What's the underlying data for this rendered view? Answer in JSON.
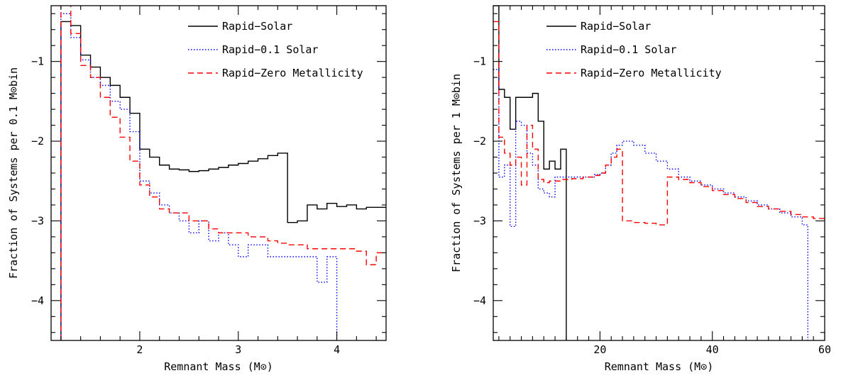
{
  "chart_data": [
    {
      "type": "line",
      "xlabel": "Remnant Mass (M⊙)",
      "ylabel": "Fraction of Systems per 0.1 M⊙bin",
      "xlim": [
        1.1,
        4.5
      ],
      "ylim": [
        -4.5,
        -0.3
      ],
      "x_major_ticks": [
        2,
        3,
        4
      ],
      "x_minor_step": 0.2,
      "y_major_ticks": [
        -4,
        -3,
        -2,
        -1
      ],
      "y_minor_step": 0.2,
      "grid": false,
      "legend_position": "top-right",
      "series": [
        {
          "name": "Rapid−Solar",
          "color": "#000000",
          "dash": "solid",
          "steps": [
            [
              1.2,
              -4.5
            ],
            [
              1.2,
              -0.5
            ],
            [
              1.3,
              -0.55
            ],
            [
              1.4,
              -0.92
            ],
            [
              1.5,
              -1.07
            ],
            [
              1.6,
              -1.2
            ],
            [
              1.7,
              -1.3
            ],
            [
              1.8,
              -1.45
            ],
            [
              1.9,
              -1.65
            ],
            [
              2.0,
              -2.1
            ],
            [
              2.1,
              -2.2
            ],
            [
              2.2,
              -2.3
            ],
            [
              2.3,
              -2.35
            ],
            [
              2.4,
              -2.36
            ],
            [
              2.5,
              -2.38
            ],
            [
              2.6,
              -2.37
            ],
            [
              2.7,
              -2.35
            ],
            [
              2.8,
              -2.33
            ],
            [
              2.9,
              -2.3
            ],
            [
              3.0,
              -2.28
            ],
            [
              3.1,
              -2.25
            ],
            [
              3.2,
              -2.22
            ],
            [
              3.3,
              -2.18
            ],
            [
              3.4,
              -2.15
            ],
            [
              3.5,
              -3.02
            ],
            [
              3.6,
              -3.0
            ],
            [
              3.7,
              -2.8
            ],
            [
              3.8,
              -2.85
            ],
            [
              3.9,
              -2.78
            ],
            [
              4.0,
              -2.82
            ],
            [
              4.1,
              -2.8
            ],
            [
              4.2,
              -2.85
            ],
            [
              4.3,
              -2.83
            ],
            [
              4.5,
              -2.83
            ]
          ]
        },
        {
          "name": "Rapid−0.1 Solar",
          "color": "#0000ff",
          "dash": "dotted",
          "steps": [
            [
              1.2,
              -4.5
            ],
            [
              1.2,
              -0.4
            ],
            [
              1.3,
              -0.7
            ],
            [
              1.4,
              -0.98
            ],
            [
              1.5,
              -1.2
            ],
            [
              1.6,
              -1.3
            ],
            [
              1.7,
              -1.5
            ],
            [
              1.8,
              -1.6
            ],
            [
              1.9,
              -1.88
            ],
            [
              2.0,
              -2.5
            ],
            [
              2.1,
              -2.65
            ],
            [
              2.2,
              -2.8
            ],
            [
              2.3,
              -2.9
            ],
            [
              2.4,
              -3.0
            ],
            [
              2.5,
              -3.15
            ],
            [
              2.6,
              -3.0
            ],
            [
              2.7,
              -3.25
            ],
            [
              2.8,
              -3.15
            ],
            [
              2.9,
              -3.3
            ],
            [
              3.0,
              -3.45
            ],
            [
              3.1,
              -3.3
            ],
            [
              3.2,
              -3.3
            ],
            [
              3.3,
              -3.45
            ],
            [
              3.4,
              -3.45
            ],
            [
              3.5,
              -3.45
            ],
            [
              3.6,
              -3.45
            ],
            [
              3.7,
              -3.45
            ],
            [
              3.8,
              -3.77
            ],
            [
              3.9,
              -3.45
            ],
            [
              4.0,
              -4.5
            ]
          ]
        },
        {
          "name": "Rapid−Zero Metallicity",
          "color": "#ff0000",
          "dash": "dashed",
          "steps": [
            [
              1.2,
              -4.5
            ],
            [
              1.2,
              -0.18
            ],
            [
              1.3,
              -0.65
            ],
            [
              1.4,
              -1.05
            ],
            [
              1.5,
              -1.2
            ],
            [
              1.6,
              -1.45
            ],
            [
              1.7,
              -1.7
            ],
            [
              1.8,
              -1.95
            ],
            [
              1.9,
              -2.25
            ],
            [
              2.0,
              -2.55
            ],
            [
              2.1,
              -2.7
            ],
            [
              2.2,
              -2.85
            ],
            [
              2.3,
              -2.9
            ],
            [
              2.4,
              -2.9
            ],
            [
              2.5,
              -3.0
            ],
            [
              2.6,
              -3.0
            ],
            [
              2.7,
              -3.1
            ],
            [
              2.8,
              -3.15
            ],
            [
              2.9,
              -3.15
            ],
            [
              3.0,
              -3.15
            ],
            [
              3.1,
              -3.2
            ],
            [
              3.2,
              -3.2
            ],
            [
              3.3,
              -3.25
            ],
            [
              3.4,
              -3.28
            ],
            [
              3.5,
              -3.3
            ],
            [
              3.6,
              -3.3
            ],
            [
              3.7,
              -3.35
            ],
            [
              3.8,
              -3.35
            ],
            [
              3.9,
              -3.35
            ],
            [
              4.0,
              -3.35
            ],
            [
              4.1,
              -3.35
            ],
            [
              4.2,
              -3.38
            ],
            [
              4.3,
              -3.55
            ],
            [
              4.4,
              -3.4
            ],
            [
              4.5,
              -3.4
            ]
          ]
        }
      ]
    },
    {
      "type": "line",
      "xlabel": "Remnant Mass (M⊙)",
      "ylabel": "Fraction of Systems per 1 M⊙bin",
      "xlim": [
        1,
        60
      ],
      "ylim": [
        -4.5,
        -0.3
      ],
      "x_major_ticks": [
        20,
        40,
        60
      ],
      "x_minor_step": 2,
      "y_major_ticks": [
        -4,
        -3,
        -2,
        -1
      ],
      "y_minor_step": 0.2,
      "grid": false,
      "legend_position": "top-left",
      "series": [
        {
          "name": "Rapid−Solar",
          "color": "#000000",
          "dash": "solid",
          "steps": [
            [
              1,
              -0.3
            ],
            [
              2,
              -1.35
            ],
            [
              3,
              -1.45
            ],
            [
              4,
              -1.85
            ],
            [
              5,
              -1.45
            ],
            [
              6,
              -1.45
            ],
            [
              7,
              -1.45
            ],
            [
              8,
              -1.4
            ],
            [
              9,
              -1.75
            ],
            [
              10,
              -2.35
            ],
            [
              11,
              -2.25
            ],
            [
              12,
              -2.35
            ],
            [
              13,
              -2.1
            ],
            [
              14,
              -4.5
            ]
          ]
        },
        {
          "name": "Rapid−0.1 Solar",
          "color": "#0000ff",
          "dash": "dotted",
          "steps": [
            [
              1,
              -1.1
            ],
            [
              2,
              -2.45
            ],
            [
              3,
              -2.3
            ],
            [
              4,
              -3.07
            ],
            [
              5,
              -1.75
            ],
            [
              6,
              -1.8
            ],
            [
              7,
              -2.15
            ],
            [
              8,
              -2.3
            ],
            [
              9,
              -2.6
            ],
            [
              10,
              -2.65
            ],
            [
              11,
              -2.7
            ],
            [
              12,
              -2.45
            ],
            [
              13,
              -2.45
            ],
            [
              15,
              -2.45
            ],
            [
              17,
              -2.45
            ],
            [
              19,
              -2.42
            ],
            [
              20,
              -2.4
            ],
            [
              21,
              -2.3
            ],
            [
              22,
              -2.15
            ],
            [
              23,
              -2.05
            ],
            [
              24,
              -2.0
            ],
            [
              25,
              -2.0
            ],
            [
              26,
              -2.05
            ],
            [
              28,
              -2.15
            ],
            [
              30,
              -2.25
            ],
            [
              32,
              -2.35
            ],
            [
              34,
              -2.45
            ],
            [
              36,
              -2.5
            ],
            [
              38,
              -2.55
            ],
            [
              40,
              -2.6
            ],
            [
              42,
              -2.65
            ],
            [
              44,
              -2.7
            ],
            [
              46,
              -2.75
            ],
            [
              48,
              -2.8
            ],
            [
              50,
              -2.85
            ],
            [
              52,
              -2.9
            ],
            [
              54,
              -2.95
            ],
            [
              56,
              -3.05
            ],
            [
              57,
              -4.5
            ]
          ]
        },
        {
          "name": "Rapid−Zero Metallicity",
          "color": "#ff0000",
          "dash": "dashed",
          "steps": [
            [
              1,
              -0.5
            ],
            [
              2,
              -1.95
            ],
            [
              3,
              -2.15
            ],
            [
              4,
              -2.3
            ],
            [
              5,
              -2.2
            ],
            [
              6,
              -2.55
            ],
            [
              7,
              -1.8
            ],
            [
              8,
              -2.1
            ],
            [
              9,
              -2.48
            ],
            [
              10,
              -2.52
            ],
            [
              11,
              -2.5
            ],
            [
              13,
              -2.48
            ],
            [
              15,
              -2.47
            ],
            [
              17,
              -2.45
            ],
            [
              19,
              -2.43
            ],
            [
              20,
              -2.4
            ],
            [
              21,
              -2.3
            ],
            [
              22,
              -2.2
            ],
            [
              23,
              -2.1
            ],
            [
              24,
              -3.0
            ],
            [
              26,
              -3.02
            ],
            [
              28,
              -3.03
            ],
            [
              30,
              -3.05
            ],
            [
              32,
              -2.45
            ],
            [
              34,
              -2.48
            ],
            [
              36,
              -2.52
            ],
            [
              38,
              -2.57
            ],
            [
              40,
              -2.62
            ],
            [
              42,
              -2.67
            ],
            [
              44,
              -2.72
            ],
            [
              46,
              -2.77
            ],
            [
              48,
              -2.82
            ],
            [
              50,
              -2.85
            ],
            [
              52,
              -2.88
            ],
            [
              54,
              -2.92
            ],
            [
              56,
              -2.95
            ],
            [
              58,
              -2.97
            ],
            [
              60,
              -3.0
            ]
          ]
        }
      ]
    }
  ]
}
